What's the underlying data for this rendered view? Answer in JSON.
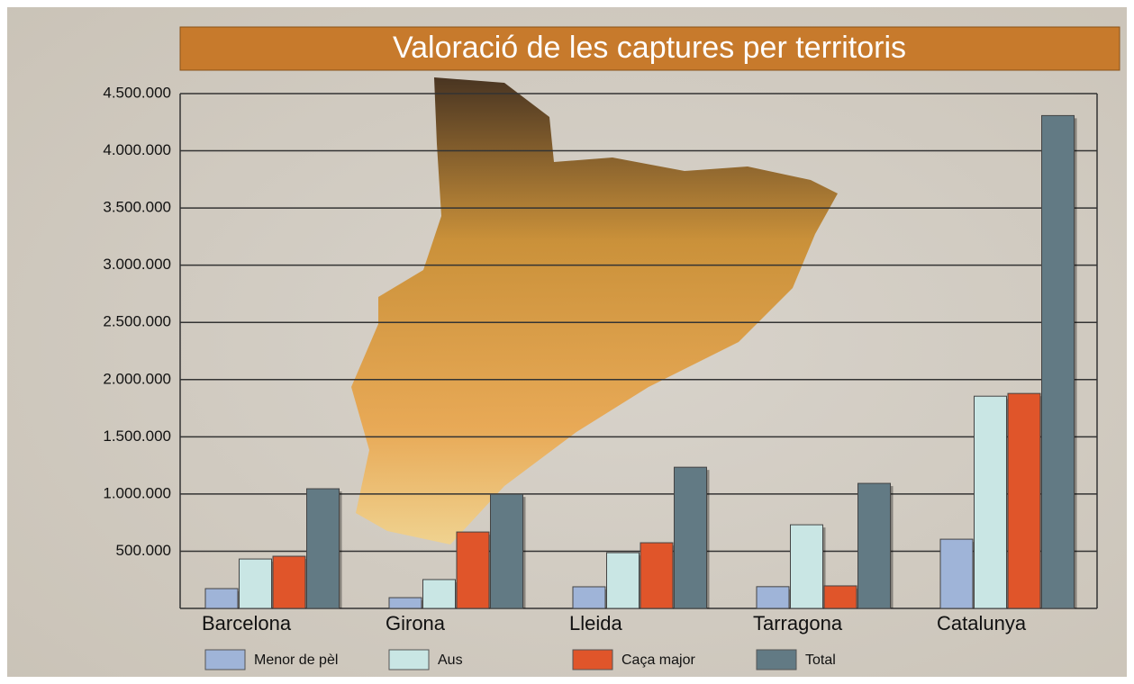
{
  "chart_data": {
    "type": "bar",
    "title": "Valoració de les captures per territoris",
    "categories": [
      "Barcelona",
      "Girona",
      "Lleida",
      "Tarragona",
      "Catalunya"
    ],
    "series": [
      {
        "name": "Menor de pèl",
        "color": "#9fb4d8",
        "values": [
          173000,
          94000,
          189000,
          190000,
          605000
        ]
      },
      {
        "name": "Aus",
        "color": "#c9e6e4",
        "values": [
          432000,
          252000,
          487000,
          731000,
          1855000
        ]
      },
      {
        "name": "Caça major",
        "color": "#e0552a",
        "values": [
          456000,
          668000,
          574000,
          197000,
          1879000
        ]
      },
      {
        "name": "Total",
        "color": "#627a84",
        "values": [
          1046000,
          998000,
          1234000,
          1093000,
          4308000
        ]
      }
    ],
    "ylim": [
      0,
      4500000
    ],
    "yticks": [
      {
        "value": 500000,
        "label": "500.000"
      },
      {
        "value": 1000000,
        "label": "1.000.000"
      },
      {
        "value": 1500000,
        "label": "1.500.000"
      },
      {
        "value": 2000000,
        "label": "2.000.000"
      },
      {
        "value": 2500000,
        "label": "2.500.000"
      },
      {
        "value": 3000000,
        "label": "3.000.000"
      },
      {
        "value": 3500000,
        "label": "3.500.000"
      },
      {
        "value": 4000000,
        "label": "4.000.000"
      },
      {
        "value": 4500000,
        "label": "4.500.000"
      }
    ],
    "grid": true
  }
}
